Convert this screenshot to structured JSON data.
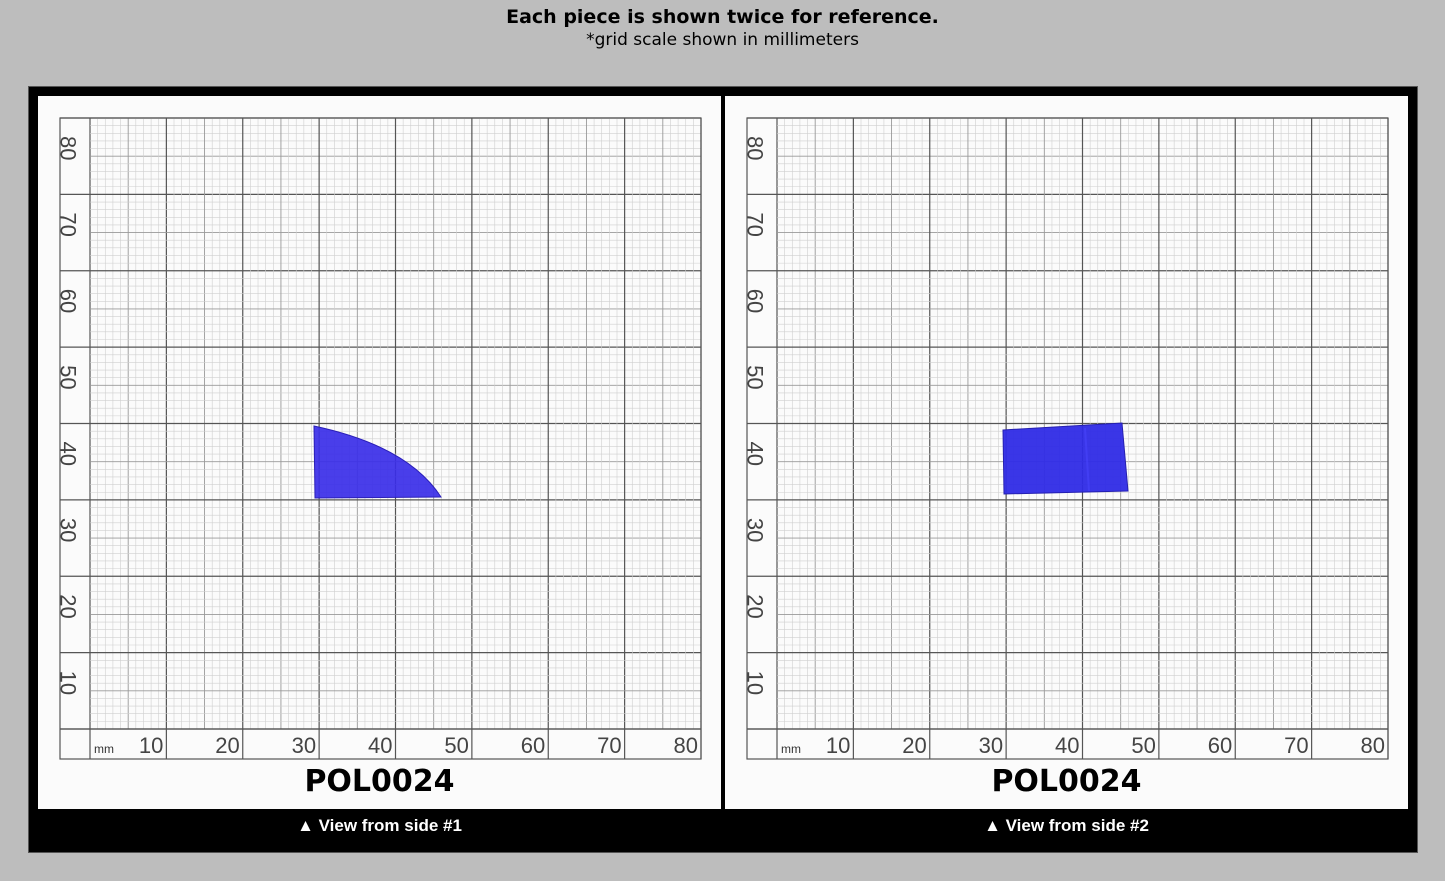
{
  "header": {
    "title": "Each piece is shown twice for reference.",
    "subtitle": "*grid scale shown in millimeters"
  },
  "grid": {
    "unit_label": "mm",
    "x_labels": [
      "10",
      "20",
      "30",
      "40",
      "50",
      "60",
      "70",
      "80"
    ],
    "y_labels": [
      "80",
      "70",
      "60",
      "50",
      "40",
      "30",
      "20",
      "10"
    ]
  },
  "panels": [
    {
      "piece_code": "POL0024",
      "caption": "▲ View from side #1",
      "piece_color": "#3a2ee8",
      "shape": "quarter-round wedge"
    },
    {
      "piece_code": "POL0024",
      "caption": "▲ View from side #2",
      "piece_color": "#2f2be6",
      "shape": "trapezoid"
    }
  ]
}
